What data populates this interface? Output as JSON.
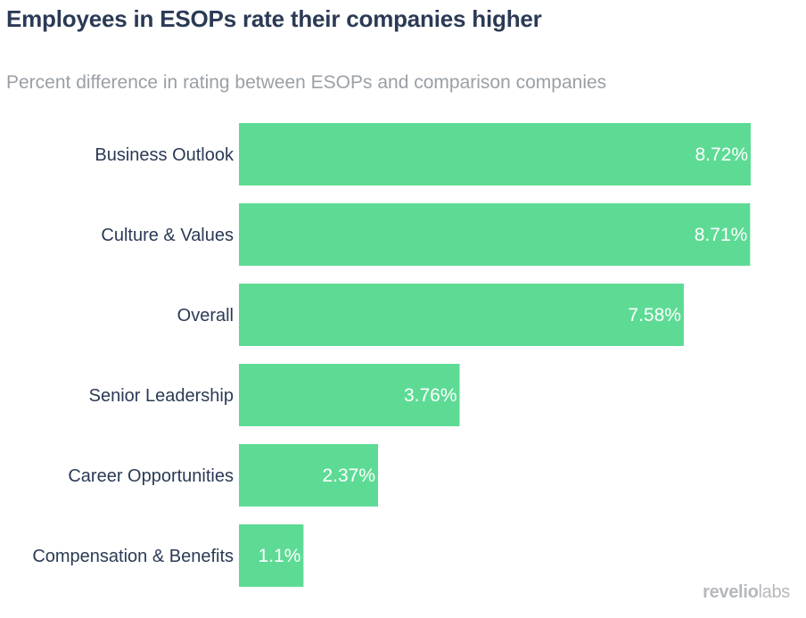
{
  "title": "Employees in ESOPs rate their companies higher",
  "subtitle": "Percent difference in rating between ESOPs and comparison companies",
  "brand": {
    "name_part1": "revelio",
    "name_part2": "labs"
  },
  "colors": {
    "bar": "#5ddb95",
    "bar_label": "#ffffff",
    "category_label": "#2b3a55"
  },
  "chart_data": {
    "type": "bar",
    "orientation": "horizontal",
    "title": "Employees in ESOPs rate their companies higher",
    "subtitle": "Percent difference in rating between ESOPs and comparison companies",
    "categories": [
      "Business Outlook",
      "Culture & Values",
      "Overall",
      "Senior Leadership",
      "Career Opportunities",
      "Compensation & Benefits"
    ],
    "values": [
      8.72,
      8.71,
      7.58,
      3.76,
      2.37,
      1.1
    ],
    "value_labels": [
      "8.72%",
      "8.71%",
      "7.58%",
      "3.76%",
      "2.37%",
      "1.1%"
    ],
    "unit": "%",
    "xlim": [
      0,
      8.72
    ],
    "xlabel": "",
    "ylabel": "",
    "grid": false,
    "legend": "none"
  }
}
